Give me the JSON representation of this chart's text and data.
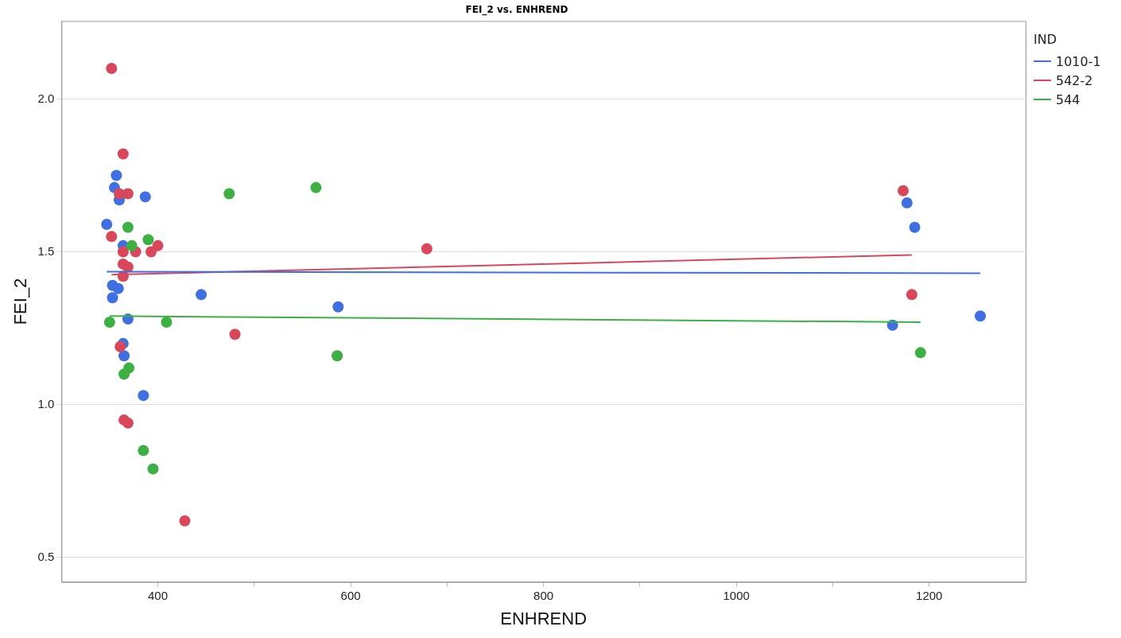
{
  "chart_data": {
    "type": "scatter",
    "title": "FEI_2 vs. ENHREND",
    "xlabel": "ENHREND",
    "ylabel": "FEI_2",
    "legend_title": "IND",
    "legend": "right",
    "grid": "y",
    "marker": "circle",
    "xlim": [
      300,
      1300
    ],
    "xticks": [
      400,
      {
        "value": 500,
        "label": null
      },
      600,
      {
        "value": 700,
        "label": null
      },
      800,
      {
        "value": 900,
        "label": null
      },
      1000,
      {
        "value": 1100,
        "label": null
      },
      1200
    ],
    "ylim": [
      0.42,
      2.255
    ],
    "yticks": [
      0.5,
      {
        "value": 1,
        "label": "1.0"
      },
      1.5,
      {
        "value": 2,
        "label": "2.0"
      }
    ],
    "series": [
      {
        "name": "1010-1",
        "color": "#3f6fe0",
        "x": [
          347,
          357,
          355,
          360,
          387,
          364,
          353,
          353,
          359,
          369,
          445,
          364,
          365,
          385,
          587,
          1162,
          1177,
          1185,
          1253
        ],
        "values": [
          1.59,
          1.75,
          1.71,
          1.67,
          1.68,
          1.52,
          1.39,
          1.35,
          1.38,
          1.28,
          1.36,
          1.2,
          1.16,
          1.03,
          1.32,
          1.26,
          1.66,
          1.58,
          1.29
        ]
      },
      {
        "name": "542-2",
        "color": "#d9475a",
        "x": [
          352,
          364,
          360,
          369,
          352,
          364,
          377,
          393,
          400,
          364,
          369,
          364,
          361,
          365,
          369,
          428,
          480,
          679,
          1173,
          1182
        ],
        "values": [
          2.1,
          1.82,
          1.69,
          1.69,
          1.55,
          1.5,
          1.5,
          1.5,
          1.52,
          1.46,
          1.45,
          1.42,
          1.19,
          0.95,
          0.94,
          0.62,
          1.23,
          1.51,
          1.7,
          1.36
        ]
      },
      {
        "name": "544",
        "color": "#3cb043",
        "x": [
          350,
          369,
          373,
          390,
          409,
          474,
          564,
          370,
          365,
          385,
          395,
          586,
          1191
        ],
        "values": [
          1.27,
          1.58,
          1.52,
          1.54,
          1.27,
          1.69,
          1.71,
          1.12,
          1.1,
          0.85,
          0.79,
          1.16,
          1.17
        ]
      },
      {
        "type": "line",
        "color": "#3f6fe0",
        "marker": "none",
        "x": [
          347,
          1253
        ],
        "values": [
          1.435,
          1.43
        ]
      },
      {
        "type": "line",
        "color": "#d9475a",
        "marker": "none",
        "x": [
          352,
          1182
        ],
        "values": [
          1.425,
          1.49
        ]
      },
      {
        "type": "line",
        "color": "#3cb043",
        "marker": "none",
        "x": [
          350,
          1191
        ],
        "values": [
          1.29,
          1.27
        ]
      }
    ]
  }
}
